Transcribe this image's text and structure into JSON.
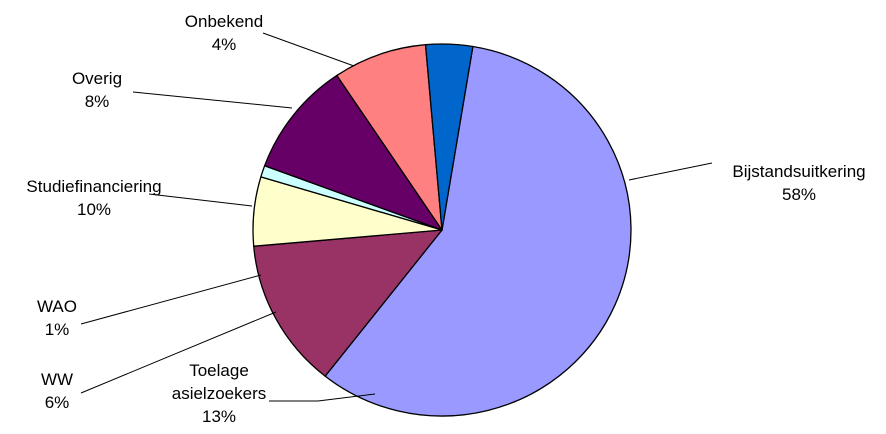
{
  "chart_data": {
    "type": "pie",
    "title": "",
    "slices": [
      {
        "label": "Bijstandsuitkering",
        "value": 58,
        "value_label": "58%",
        "color": "#9999FF"
      },
      {
        "label": "Toelage asielzoekers",
        "label_lines": [
          "Toelage",
          "asielzoekers"
        ],
        "value": 13,
        "value_label": "13%",
        "color": "#993366"
      },
      {
        "label": "WW",
        "value": 6,
        "value_label": "6%",
        "color": "#FFFFCC"
      },
      {
        "label": "WAO",
        "value": 1,
        "value_label": "1%",
        "color": "#CCFFFF"
      },
      {
        "label": "Studiefinanciering",
        "value": 10,
        "value_label": "10%",
        "color": "#660066"
      },
      {
        "label": "Overig",
        "value": 8,
        "value_label": "8%",
        "color": "#FF8080"
      },
      {
        "label": "Onbekend",
        "value": 4,
        "value_label": "4%",
        "color": "#0066CC"
      }
    ],
    "legend": "none"
  }
}
